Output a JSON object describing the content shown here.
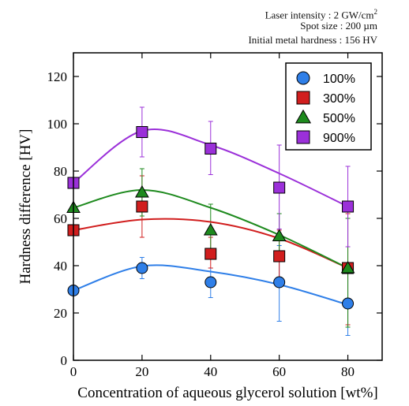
{
  "conditions": {
    "laser_intensity": "Laser intensity : 2 GW/cm",
    "laser_intensity_sup": "2",
    "spot_size": "Spot size : 200 µm",
    "initial_hardness": "Initial metal hardness : 156 HV"
  },
  "chart_data": {
    "type": "scatter",
    "xlabel": "Concentration of aqueous glycerol solution [wt%]",
    "ylabel": "Hardness difference [HV]",
    "xlim": [
      0,
      90
    ],
    "ylim": [
      0,
      130
    ],
    "x_ticks": [
      0,
      20,
      40,
      60,
      80
    ],
    "y_ticks": [
      0,
      20,
      40,
      60,
      80,
      100,
      120
    ],
    "grid": false,
    "legend_placement": "top-right",
    "x": [
      0,
      20,
      40,
      60,
      80
    ],
    "series": [
      {
        "name": "100%",
        "color": "#2f7fe8",
        "marker": "circle",
        "values": [
          29.5,
          39,
          33,
          33,
          24
        ],
        "err_low": [
          29.5,
          34.5,
          26.5,
          16.5,
          10.5
        ],
        "err_high": [
          29.5,
          43.5,
          39,
          48.5,
          38
        ],
        "fit": [
          29.5,
          39.8,
          37.5,
          32,
          23.5
        ]
      },
      {
        "name": "300%",
        "color": "#d11e1e",
        "marker": "square",
        "values": [
          55,
          65,
          45,
          44,
          39
        ],
        "err_low": [
          55,
          52,
          39,
          34,
          15
        ],
        "err_high": [
          55,
          78,
          52,
          55,
          62
        ],
        "fit": [
          55,
          59.5,
          58.5,
          51.5,
          39
        ]
      },
      {
        "name": "500%",
        "color": "#1e8a1e",
        "marker": "triangle",
        "values": [
          64.5,
          71,
          55,
          52.5,
          39
        ],
        "err_low": [
          64.5,
          61,
          44,
          44,
          14
        ],
        "err_high": [
          64.5,
          81,
          66,
          62,
          60
        ],
        "fit": [
          64.5,
          72,
          64.5,
          53,
          39
        ]
      },
      {
        "name": "900%",
        "color": "#9b30d9",
        "marker": "square",
        "values": [
          75,
          96.5,
          89.5,
          73,
          65
        ],
        "err_low": [
          75,
          86,
          78.5,
          55.5,
          48
        ],
        "err_high": [
          75,
          107,
          101,
          91,
          82
        ],
        "fit": [
          75,
          97,
          91,
          79,
          65
        ]
      }
    ]
  }
}
